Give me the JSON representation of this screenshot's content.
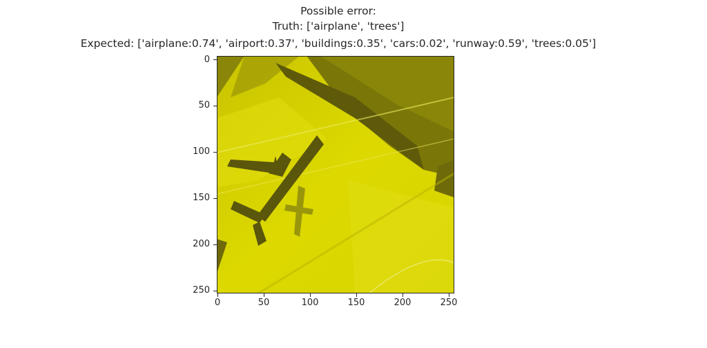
{
  "title": {
    "line1": "Possible error:",
    "line2": "Truth: ['airplane', 'trees']",
    "line3": "Expected: ['airplane:0.74', 'airport:0.37', 'buildings:0.35', 'cars:0.02', 'runway:0.59', 'trees:0.05']"
  },
  "axes": {
    "x_ticks": [
      "0",
      "50",
      "100",
      "150",
      "200",
      "250"
    ],
    "y_ticks": [
      "0",
      "50",
      "100",
      "150",
      "200",
      "250"
    ]
  },
  "image": {
    "tint_color": "#d4d000",
    "shadow_color": "#6e6a0a",
    "description_icon": "aerial-airport-photo"
  }
}
